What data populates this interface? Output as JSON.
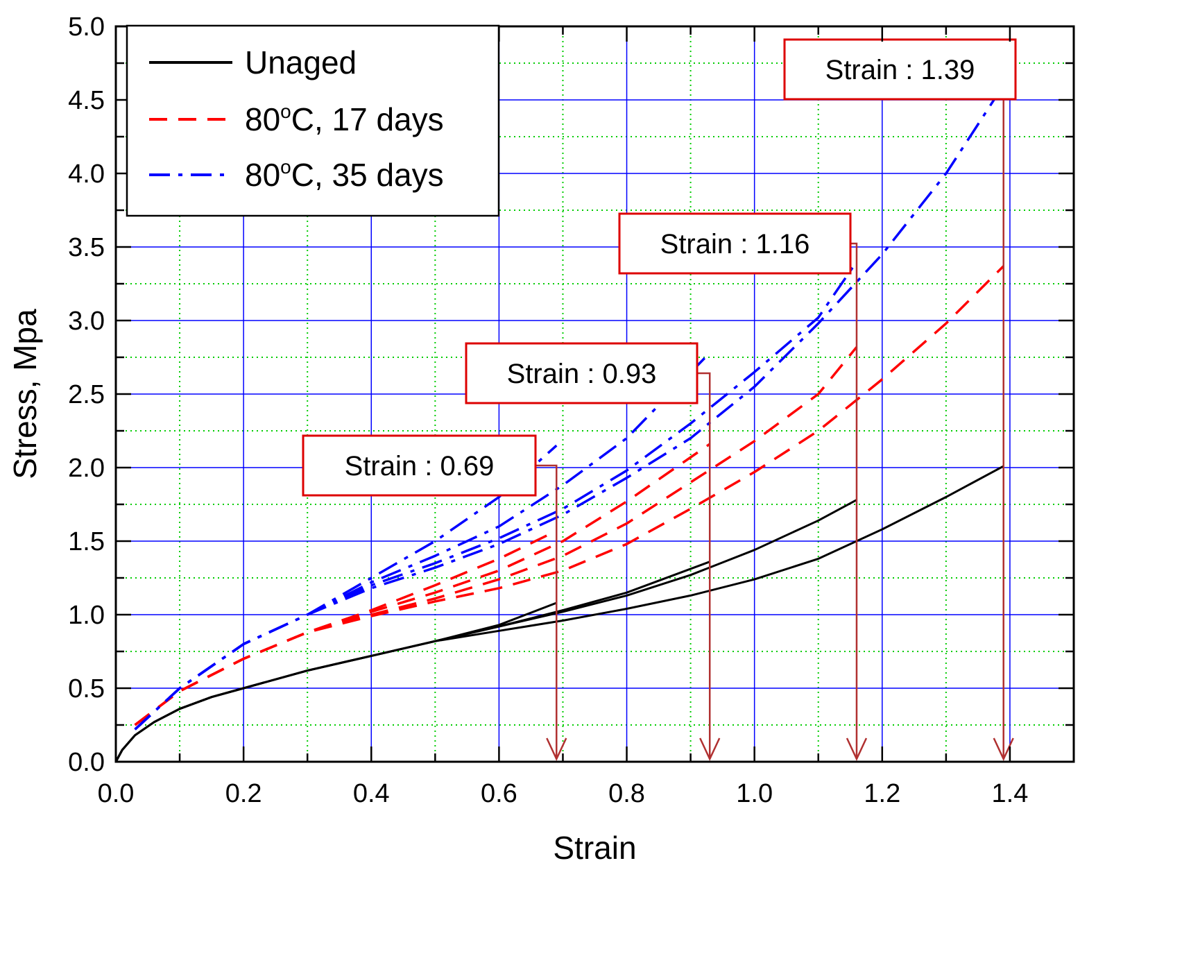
{
  "chart_data": {
    "type": "line",
    "title": "",
    "xlabel": "Strain",
    "ylabel": "Stress, Mpa",
    "xlim": [
      0.0,
      1.5
    ],
    "ylim": [
      0.0,
      5.0
    ],
    "xticks": [
      "0.0",
      "0.2",
      "0.4",
      "0.6",
      "0.8",
      "1.0",
      "1.2",
      "1.4"
    ],
    "yticks": [
      "0.0",
      "0.5",
      "1.0",
      "1.5",
      "2.0",
      "2.5",
      "3.0",
      "3.5",
      "4.0",
      "4.5",
      "5.0"
    ],
    "major_grid": true,
    "minor_grid": true,
    "legend": {
      "position": "top-left",
      "entries": [
        {
          "name": "Unaged",
          "color": "#000000",
          "style": "solid"
        },
        {
          "name": "80°C, 17 days",
          "name_main": "80",
          "name_sup": "o",
          "name_tail": "C, 17 days",
          "color": "#ff0000",
          "style": "dashed"
        },
        {
          "name": "80°C, 35 days",
          "name_main": "80",
          "name_sup": "o",
          "name_tail": "C, 35 days",
          "color": "#0000ff",
          "style": "dashdot"
        }
      ]
    },
    "series": [
      {
        "name": "Unaged",
        "group": "Unaged",
        "color": "#000000",
        "style": "solid",
        "end_strain": 0.69,
        "points": [
          [
            0,
            0
          ],
          [
            0.01,
            0.08
          ],
          [
            0.03,
            0.18
          ],
          [
            0.06,
            0.27
          ],
          [
            0.1,
            0.36
          ],
          [
            0.15,
            0.44
          ],
          [
            0.2,
            0.5
          ],
          [
            0.3,
            0.62
          ],
          [
            0.4,
            0.72
          ],
          [
            0.5,
            0.82
          ],
          [
            0.6,
            0.93
          ],
          [
            0.69,
            1.08
          ]
        ]
      },
      {
        "name": "Unaged",
        "group": "Unaged",
        "color": "#000000",
        "style": "solid",
        "end_strain": 0.93,
        "points": [
          [
            0,
            0
          ],
          [
            0.01,
            0.08
          ],
          [
            0.03,
            0.18
          ],
          [
            0.06,
            0.27
          ],
          [
            0.1,
            0.36
          ],
          [
            0.15,
            0.44
          ],
          [
            0.2,
            0.5
          ],
          [
            0.3,
            0.62
          ],
          [
            0.4,
            0.72
          ],
          [
            0.5,
            0.82
          ],
          [
            0.6,
            0.92
          ],
          [
            0.7,
            1.03
          ],
          [
            0.8,
            1.15
          ],
          [
            0.93,
            1.36
          ]
        ]
      },
      {
        "name": "Unaged",
        "group": "Unaged",
        "color": "#000000",
        "style": "solid",
        "end_strain": 1.16,
        "points": [
          [
            0,
            0
          ],
          [
            0.01,
            0.08
          ],
          [
            0.03,
            0.18
          ],
          [
            0.06,
            0.27
          ],
          [
            0.1,
            0.36
          ],
          [
            0.15,
            0.44
          ],
          [
            0.2,
            0.5
          ],
          [
            0.3,
            0.62
          ],
          [
            0.4,
            0.72
          ],
          [
            0.5,
            0.82
          ],
          [
            0.6,
            0.92
          ],
          [
            0.7,
            1.02
          ],
          [
            0.8,
            1.13
          ],
          [
            0.9,
            1.27
          ],
          [
            1.0,
            1.44
          ],
          [
            1.1,
            1.64
          ],
          [
            1.16,
            1.78
          ]
        ]
      },
      {
        "name": "Unaged",
        "group": "Unaged",
        "color": "#000000",
        "style": "solid",
        "end_strain": 1.39,
        "points": [
          [
            0,
            0
          ],
          [
            0.01,
            0.08
          ],
          [
            0.03,
            0.18
          ],
          [
            0.06,
            0.27
          ],
          [
            0.1,
            0.36
          ],
          [
            0.15,
            0.44
          ],
          [
            0.2,
            0.5
          ],
          [
            0.3,
            0.62
          ],
          [
            0.4,
            0.72
          ],
          [
            0.5,
            0.82
          ],
          [
            0.6,
            0.89
          ],
          [
            0.7,
            0.96
          ],
          [
            0.8,
            1.04
          ],
          [
            0.9,
            1.13
          ],
          [
            1.0,
            1.24
          ],
          [
            1.1,
            1.38
          ],
          [
            1.2,
            1.58
          ],
          [
            1.3,
            1.8
          ],
          [
            1.39,
            2.01
          ]
        ]
      },
      {
        "name": "80°C, 17 days",
        "group": "17 days",
        "color": "#ff0000",
        "style": "dashed",
        "end_strain": 0.69,
        "points": [
          [
            0.03,
            0.25
          ],
          [
            0.1,
            0.48
          ],
          [
            0.2,
            0.7
          ],
          [
            0.3,
            0.88
          ],
          [
            0.4,
            1.03
          ],
          [
            0.5,
            1.2
          ],
          [
            0.6,
            1.38
          ],
          [
            0.69,
            1.57
          ]
        ]
      },
      {
        "name": "80°C, 17 days",
        "group": "17 days",
        "color": "#ff0000",
        "style": "dashed",
        "end_strain": 0.93,
        "points": [
          [
            0.03,
            0.25
          ],
          [
            0.1,
            0.48
          ],
          [
            0.2,
            0.7
          ],
          [
            0.3,
            0.88
          ],
          [
            0.4,
            1.02
          ],
          [
            0.5,
            1.15
          ],
          [
            0.6,
            1.3
          ],
          [
            0.7,
            1.5
          ],
          [
            0.8,
            1.77
          ],
          [
            0.93,
            2.16
          ]
        ]
      },
      {
        "name": "80°C, 17 days",
        "group": "17 days",
        "color": "#ff0000",
        "style": "dashed",
        "end_strain": 1.16,
        "points": [
          [
            0.03,
            0.25
          ],
          [
            0.1,
            0.48
          ],
          [
            0.2,
            0.7
          ],
          [
            0.3,
            0.88
          ],
          [
            0.4,
            1.0
          ],
          [
            0.5,
            1.11
          ],
          [
            0.6,
            1.24
          ],
          [
            0.7,
            1.4
          ],
          [
            0.8,
            1.62
          ],
          [
            0.9,
            1.9
          ],
          [
            1.0,
            2.18
          ],
          [
            1.1,
            2.5
          ],
          [
            1.16,
            2.82
          ]
        ]
      },
      {
        "name": "80°C, 17 days",
        "group": "17 days",
        "color": "#ff0000",
        "style": "dashed",
        "end_strain": 1.39,
        "points": [
          [
            0.03,
            0.25
          ],
          [
            0.1,
            0.48
          ],
          [
            0.2,
            0.7
          ],
          [
            0.3,
            0.88
          ],
          [
            0.4,
            0.99
          ],
          [
            0.5,
            1.09
          ],
          [
            0.6,
            1.18
          ],
          [
            0.7,
            1.3
          ],
          [
            0.8,
            1.48
          ],
          [
            0.9,
            1.72
          ],
          [
            1.0,
            1.97
          ],
          [
            1.1,
            2.25
          ],
          [
            1.2,
            2.6
          ],
          [
            1.3,
            2.98
          ],
          [
            1.39,
            3.37
          ]
        ]
      },
      {
        "name": "80°C, 35 days",
        "group": "35 days",
        "color": "#0000ff",
        "style": "dashdot",
        "end_strain": 0.69,
        "points": [
          [
            0.03,
            0.22
          ],
          [
            0.1,
            0.5
          ],
          [
            0.2,
            0.8
          ],
          [
            0.3,
            1.0
          ],
          [
            0.4,
            1.25
          ],
          [
            0.5,
            1.5
          ],
          [
            0.6,
            1.8
          ],
          [
            0.69,
            2.15
          ]
        ]
      },
      {
        "name": "80°C, 35 days",
        "group": "35 days",
        "color": "#0000ff",
        "style": "dashdot",
        "end_strain": 0.93,
        "points": [
          [
            0.03,
            0.22
          ],
          [
            0.1,
            0.5
          ],
          [
            0.2,
            0.8
          ],
          [
            0.3,
            1.0
          ],
          [
            0.4,
            1.22
          ],
          [
            0.5,
            1.4
          ],
          [
            0.6,
            1.6
          ],
          [
            0.7,
            1.88
          ],
          [
            0.8,
            2.2
          ],
          [
            0.93,
            2.78
          ]
        ]
      },
      {
        "name": "80°C, 35 days",
        "group": "35 days",
        "color": "#0000ff",
        "style": "dashdot",
        "end_strain": 1.16,
        "points": [
          [
            0.03,
            0.22
          ],
          [
            0.1,
            0.5
          ],
          [
            0.2,
            0.8
          ],
          [
            0.3,
            1.0
          ],
          [
            0.4,
            1.2
          ],
          [
            0.5,
            1.35
          ],
          [
            0.6,
            1.52
          ],
          [
            0.7,
            1.72
          ],
          [
            0.8,
            1.98
          ],
          [
            0.9,
            2.3
          ],
          [
            1.0,
            2.65
          ],
          [
            1.1,
            3.02
          ],
          [
            1.16,
            3.4
          ]
        ]
      },
      {
        "name": "80°C, 35 days",
        "group": "35 days",
        "color": "#0000ff",
        "style": "dashdot",
        "end_strain": 1.39,
        "points": [
          [
            0.03,
            0.22
          ],
          [
            0.1,
            0.5
          ],
          [
            0.2,
            0.8
          ],
          [
            0.3,
            1.0
          ],
          [
            0.4,
            1.18
          ],
          [
            0.5,
            1.32
          ],
          [
            0.6,
            1.48
          ],
          [
            0.7,
            1.68
          ],
          [
            0.8,
            1.93
          ],
          [
            0.9,
            2.2
          ],
          [
            1.0,
            2.55
          ],
          [
            1.1,
            2.98
          ],
          [
            1.2,
            3.45
          ],
          [
            1.3,
            4.0
          ],
          [
            1.39,
            4.6
          ]
        ]
      }
    ],
    "annotations": [
      {
        "label": "Strain",
        "sep": ":",
        "value": "0.69",
        "strain": 0.69,
        "arrow_color": "#b03030",
        "box_color": "#dd0000"
      },
      {
        "label": "Strain",
        "sep": ":",
        "value": "0.93",
        "strain": 0.93,
        "arrow_color": "#b03030",
        "box_color": "#dd0000"
      },
      {
        "label": "Strain",
        "sep": ":",
        "value": "1.16",
        "strain": 1.16,
        "arrow_color": "#b03030",
        "box_color": "#dd0000"
      },
      {
        "label": "Strain",
        "sep": ":",
        "value": "1.39",
        "strain": 1.39,
        "arrow_color": "#b03030",
        "box_color": "#dd0000"
      }
    ],
    "colors": {
      "major_grid": "#0000ff",
      "minor_grid": "#00cc00",
      "axis": "#000000"
    }
  }
}
